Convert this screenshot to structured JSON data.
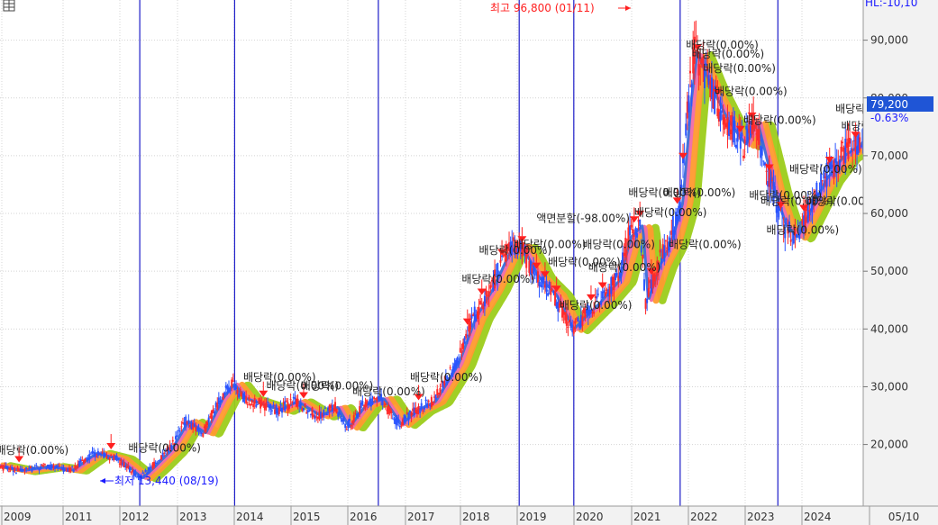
{
  "chart_data": {
    "type": "candlestick",
    "ylim": [
      10000,
      100000
    ],
    "y_ticks": [
      "20,000",
      "30,000",
      "40,000",
      "50,000",
      "60,000",
      "70,000",
      "80,000",
      "90,000"
    ],
    "x_ticks": [
      "2009",
      "2011",
      "2012",
      "2013",
      "2014",
      "2015",
      "2016",
      "2017",
      "2018",
      "2019",
      "2020",
      "2021",
      "2022",
      "2023",
      "2024"
    ],
    "x_axis_end_label": "05/10",
    "top_right_clipped_label": "HL:-10,10",
    "current_price": "79,200",
    "current_change": "-0.63%",
    "high_label": "최고 96,800 (01/11)",
    "low_label": "최저 13,440 (08/19)",
    "price_path": [
      [
        2008.8,
        16500
      ],
      [
        2009.3,
        15500
      ],
      [
        2009.8,
        16200
      ],
      [
        2010.2,
        15600
      ],
      [
        2010.6,
        18500
      ],
      [
        2011.0,
        17500
      ],
      [
        2011.4,
        14200
      ],
      [
        2011.6,
        16000
      ],
      [
        2011.9,
        19000
      ],
      [
        2012.2,
        24000
      ],
      [
        2012.5,
        22000
      ],
      [
        2012.8,
        28000
      ],
      [
        2013.0,
        30500
      ],
      [
        2013.2,
        28000
      ],
      [
        2013.5,
        27000
      ],
      [
        2013.8,
        26000
      ],
      [
        2014.1,
        27500
      ],
      [
        2014.5,
        25000
      ],
      [
        2014.8,
        26500
      ],
      [
        2015.0,
        23000
      ],
      [
        2015.3,
        27000
      ],
      [
        2015.6,
        28000
      ],
      [
        2015.9,
        23500
      ],
      [
        2016.2,
        26000
      ],
      [
        2016.5,
        27500
      ],
      [
        2016.9,
        34000
      ],
      [
        2017.2,
        42000
      ],
      [
        2017.5,
        47000
      ],
      [
        2017.8,
        53500
      ],
      [
        2018.0,
        54500
      ],
      [
        2018.3,
        49000
      ],
      [
        2018.6,
        46000
      ],
      [
        2018.9,
        40000
      ],
      [
        2019.1,
        42000
      ],
      [
        2019.4,
        45000
      ],
      [
        2019.7,
        48500
      ],
      [
        2019.9,
        56000
      ],
      [
        2020.1,
        58000
      ],
      [
        2020.2,
        45000
      ],
      [
        2020.4,
        51000
      ],
      [
        2020.6,
        55000
      ],
      [
        2020.8,
        62000
      ],
      [
        2020.95,
        80000
      ],
      [
        2021.05,
        88000
      ],
      [
        2021.3,
        82000
      ],
      [
        2021.6,
        76000
      ],
      [
        2021.9,
        72000
      ],
      [
        2022.1,
        76000
      ],
      [
        2022.4,
        64000
      ],
      [
        2022.6,
        58000
      ],
      [
        2022.8,
        56000
      ],
      [
        2023.0,
        60000
      ],
      [
        2023.3,
        66000
      ],
      [
        2023.6,
        70000
      ],
      [
        2023.9,
        72000
      ],
      [
        2024.1,
        75000
      ],
      [
        2024.3,
        82000
      ],
      [
        2024.4,
        79200
      ]
    ],
    "vertical_lines": [
      2011.4,
      2013.05,
      2015.55,
      2018.0,
      2018.95,
      2020.8,
      2022.5
    ],
    "annotations": [
      {
        "text": "배당락(0.00%)",
        "x": 2011.2,
        "y": 18800
      },
      {
        "text": "배당락(0.00%)",
        "x": 2008.9,
        "y": 18400
      },
      {
        "text": "배당락(0.00%)",
        "x": 2013.2,
        "y": 31000
      },
      {
        "text": "배당락(0.00%)",
        "x": 2013.6,
        "y": 29500
      },
      {
        "text": "배당락(0.00%)",
        "x": 2014.2,
        "y": 29500
      },
      {
        "text": "배당락(0.00%)",
        "x": 2015.1,
        "y": 28500
      },
      {
        "text": "배당락(0.00%)",
        "x": 2016.1,
        "y": 31000
      },
      {
        "text": "배당락(0.00%)",
        "x": 2017.0,
        "y": 48000
      },
      {
        "text": "배당락(0.00%)",
        "x": 2017.3,
        "y": 53000
      },
      {
        "text": "배당락(0.00%)",
        "x": 2017.9,
        "y": 54000
      },
      {
        "text": "액면분할(-98.00%)",
        "x": 2018.3,
        "y": 58500
      },
      {
        "text": "배당락(0.00%)",
        "x": 2018.5,
        "y": 51000
      },
      {
        "text": "배당락(0.00%)",
        "x": 2018.7,
        "y": 43500
      },
      {
        "text": "배당락(0.00%)",
        "x": 2019.1,
        "y": 54000
      },
      {
        "text": "배당락(0.00%)",
        "x": 2019.2,
        "y": 50000
      },
      {
        "text": "배당락(0.00%)",
        "x": 2019.9,
        "y": 63000
      },
      {
        "text": "배당락(0.00%)",
        "x": 2020.0,
        "y": 59500
      },
      {
        "text": "배당락(0.00%)",
        "x": 2020.5,
        "y": 63000
      },
      {
        "text": "배당락(0.00%)",
        "x": 2020.6,
        "y": 54000
      },
      {
        "text": "배당락(0.00%)",
        "x": 2020.9,
        "y": 88500
      },
      {
        "text": "배당락(0.00%)",
        "x": 2021.0,
        "y": 87000
      },
      {
        "text": "배당락(0.00%)",
        "x": 2021.2,
        "y": 84500
      },
      {
        "text": "배당락(0.00%)",
        "x": 2021.4,
        "y": 80500
      },
      {
        "text": "배당락(0.00%)",
        "x": 2021.9,
        "y": 75500
      },
      {
        "text": "배당락(0.00%)",
        "x": 2022.0,
        "y": 62500
      },
      {
        "text": "배당락(0.00%)",
        "x": 2022.2,
        "y": 61500
      },
      {
        "text": "배당락(0.00%)",
        "x": 2022.3,
        "y": 56500
      },
      {
        "text": "배당락(0.00%)",
        "x": 2022.7,
        "y": 67000
      },
      {
        "text": "배당락(0.00%)",
        "x": 2023.0,
        "y": 61500
      },
      {
        "text": "배당락(0.00%)",
        "x": 2023.5,
        "y": 77500
      },
      {
        "text": "배당락(0.00%)",
        "x": 2023.6,
        "y": 74500
      },
      {
        "text": "배당락(0.00%)",
        "x": 2024.0,
        "y": 83500
      }
    ],
    "dividend_markers": [
      2008.85,
      2009.3,
      2010.9,
      2013.55,
      2014.25,
      2016.25,
      2017.1,
      2017.35,
      2017.7,
      2018.05,
      2018.3,
      2018.45,
      2018.65,
      2019.25,
      2019.45,
      2020.0,
      2020.1,
      2020.3,
      2020.75,
      2020.85,
      2021.1,
      2021.45,
      2021.85,
      2022.05,
      2022.35,
      2022.55,
      2022.95,
      2023.4,
      2023.85
    ]
  }
}
